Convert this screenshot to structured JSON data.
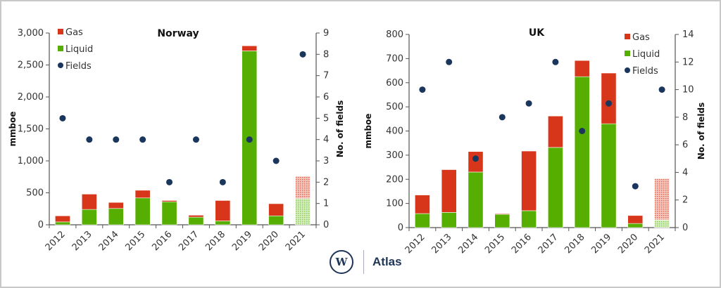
{
  "colors": {
    "gas": "#d7361a",
    "liquid": "#55ae00",
    "fields": "#1b365d"
  },
  "brand": {
    "name": "Atlas",
    "logo_letter": "W"
  },
  "chart_data": [
    {
      "type": "bar",
      "stacked": true,
      "title": "Norway",
      "ylabel": "mmboe",
      "y2label": "No. of fields",
      "ylim": [
        0,
        3000
      ],
      "y_ticks": [
        0,
        500,
        1000,
        1500,
        2000,
        2500,
        3000
      ],
      "y_tick_labels": [
        "0",
        "500",
        "1,000",
        "1,500",
        "2,000",
        "2,500",
        "3,000"
      ],
      "y2lim": [
        0,
        9
      ],
      "y2_ticks": [
        0,
        1,
        2,
        3,
        4,
        5,
        6,
        7,
        8,
        9
      ],
      "categories": [
        "2012",
        "2013",
        "2014",
        "2015",
        "2016",
        "2017",
        "2018",
        "2019",
        "2020",
        "2021"
      ],
      "forecast_categories": [
        "2021"
      ],
      "legend": "top-left",
      "series": [
        {
          "name": "Gas",
          "kind": "bar",
          "values": [
            95,
            240,
            95,
            120,
            20,
            30,
            320,
            80,
            190,
            350
          ]
        },
        {
          "name": "Liquid",
          "kind": "bar",
          "values": [
            45,
            240,
            255,
            420,
            360,
            120,
            60,
            2720,
            140,
            410
          ]
        },
        {
          "name": "Fields",
          "kind": "scatter",
          "axis": "right",
          "values": [
            5,
            4,
            4,
            4,
            2,
            4,
            2,
            4,
            3,
            8
          ]
        }
      ]
    },
    {
      "type": "bar",
      "stacked": true,
      "title": "UK",
      "ylabel": "mmboe",
      "y2label": "No. of fields",
      "ylim": [
        0,
        800
      ],
      "y_ticks": [
        0,
        100,
        200,
        300,
        400,
        500,
        600,
        700,
        800
      ],
      "y_tick_labels": [
        "0",
        "100",
        "200",
        "300",
        "400",
        "500",
        "600",
        "700",
        "800"
      ],
      "y2lim": [
        0,
        14
      ],
      "y2_ticks": [
        0,
        2,
        4,
        6,
        8,
        10,
        12,
        14
      ],
      "categories": [
        "2012",
        "2013",
        "2014",
        "2015",
        "2016",
        "2017",
        "2018",
        "2019",
        "2020",
        "2021"
      ],
      "forecast_categories": [
        "2021"
      ],
      "legend": "top-right",
      "series": [
        {
          "name": "Gas",
          "kind": "bar",
          "values": [
            77,
            177,
            85,
            3,
            247,
            130,
            67,
            210,
            33,
            171
          ]
        },
        {
          "name": "Liquid",
          "kind": "bar",
          "values": [
            58,
            63,
            230,
            55,
            70,
            332,
            625,
            430,
            17,
            32
          ]
        },
        {
          "name": "Fields",
          "kind": "scatter",
          "axis": "right",
          "values": [
            10,
            12,
            5,
            8,
            9,
            12,
            7,
            9,
            3,
            10
          ]
        }
      ]
    }
  ]
}
